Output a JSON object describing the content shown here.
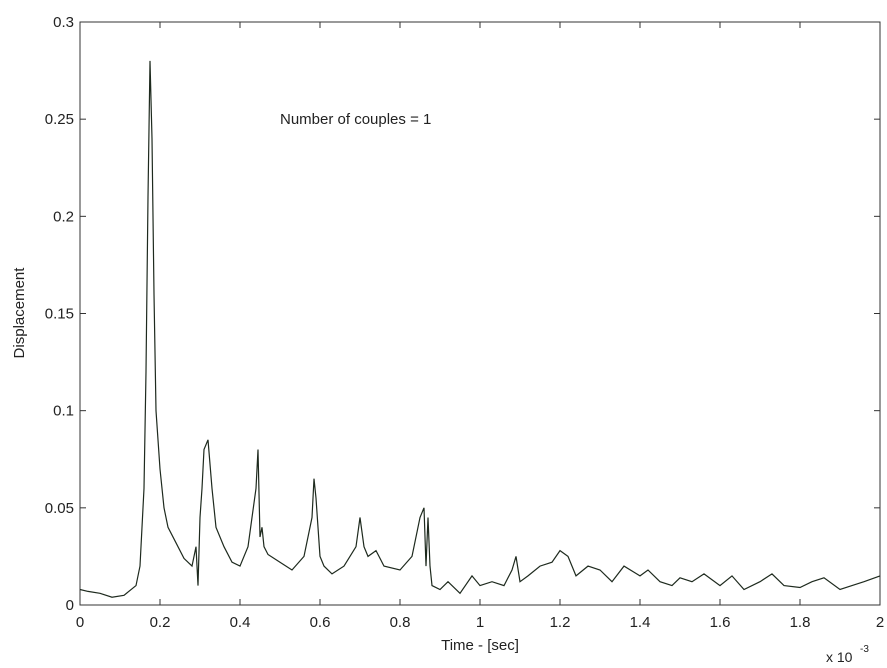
{
  "chart_data": {
    "type": "line",
    "title": "",
    "annotation": "Number of couples = 1",
    "xlabel": "Time - [sec]",
    "ylabel": "Displacement",
    "x_multiplier_label": "x 10",
    "x_multiplier_exp": "-3",
    "xlim": [
      0,
      2
    ],
    "ylim": [
      0,
      0.3
    ],
    "x_unit_scale": 0.001,
    "xticks": [
      "0",
      "0.2",
      "0.4",
      "0.6",
      "0.8",
      "1",
      "1.2",
      "1.4",
      "1.6",
      "1.8",
      "2"
    ],
    "yticks": [
      "0",
      "0.05",
      "0.1",
      "0.15",
      "0.2",
      "0.25",
      "0.3"
    ],
    "grid": false,
    "line_color": "#1e2a1e",
    "series": [
      {
        "x": [
          0.0,
          0.02,
          0.05,
          0.08,
          0.11,
          0.14,
          0.15,
          0.16,
          0.165,
          0.17,
          0.175,
          0.18,
          0.185,
          0.19,
          0.2,
          0.21,
          0.22,
          0.24,
          0.26,
          0.28,
          0.29,
          0.295,
          0.3,
          0.305,
          0.31,
          0.32,
          0.33,
          0.34,
          0.36,
          0.38,
          0.4,
          0.42,
          0.43,
          0.44,
          0.445,
          0.45,
          0.455,
          0.46,
          0.47,
          0.5,
          0.53,
          0.56,
          0.58,
          0.585,
          0.59,
          0.595,
          0.6,
          0.61,
          0.63,
          0.66,
          0.69,
          0.7,
          0.71,
          0.72,
          0.74,
          0.76,
          0.8,
          0.83,
          0.85,
          0.86,
          0.865,
          0.87,
          0.875,
          0.88,
          0.9,
          0.92,
          0.95,
          0.98,
          1.0,
          1.03,
          1.06,
          1.08,
          1.09,
          1.1,
          1.12,
          1.15,
          1.18,
          1.2,
          1.22,
          1.24,
          1.27,
          1.3,
          1.33,
          1.36,
          1.4,
          1.42,
          1.45,
          1.48,
          1.5,
          1.53,
          1.56,
          1.6,
          1.63,
          1.66,
          1.7,
          1.73,
          1.76,
          1.8,
          1.83,
          1.86,
          1.9,
          1.93,
          1.96,
          2.0
        ],
        "y": [
          0.008,
          0.007,
          0.006,
          0.004,
          0.005,
          0.01,
          0.02,
          0.06,
          0.12,
          0.21,
          0.28,
          0.24,
          0.16,
          0.1,
          0.07,
          0.05,
          0.04,
          0.032,
          0.024,
          0.02,
          0.03,
          0.01,
          0.045,
          0.06,
          0.08,
          0.085,
          0.06,
          0.04,
          0.03,
          0.022,
          0.02,
          0.03,
          0.045,
          0.06,
          0.08,
          0.035,
          0.04,
          0.03,
          0.026,
          0.022,
          0.018,
          0.025,
          0.045,
          0.065,
          0.055,
          0.04,
          0.025,
          0.02,
          0.016,
          0.02,
          0.03,
          0.045,
          0.03,
          0.025,
          0.028,
          0.02,
          0.018,
          0.025,
          0.045,
          0.05,
          0.02,
          0.045,
          0.02,
          0.01,
          0.008,
          0.012,
          0.006,
          0.015,
          0.01,
          0.012,
          0.01,
          0.018,
          0.025,
          0.012,
          0.015,
          0.02,
          0.022,
          0.028,
          0.025,
          0.015,
          0.02,
          0.018,
          0.012,
          0.02,
          0.015,
          0.018,
          0.012,
          0.01,
          0.014,
          0.012,
          0.016,
          0.01,
          0.015,
          0.008,
          0.012,
          0.016,
          0.01,
          0.009,
          0.012,
          0.014,
          0.008,
          0.01,
          0.012,
          0.015
        ]
      }
    ]
  }
}
